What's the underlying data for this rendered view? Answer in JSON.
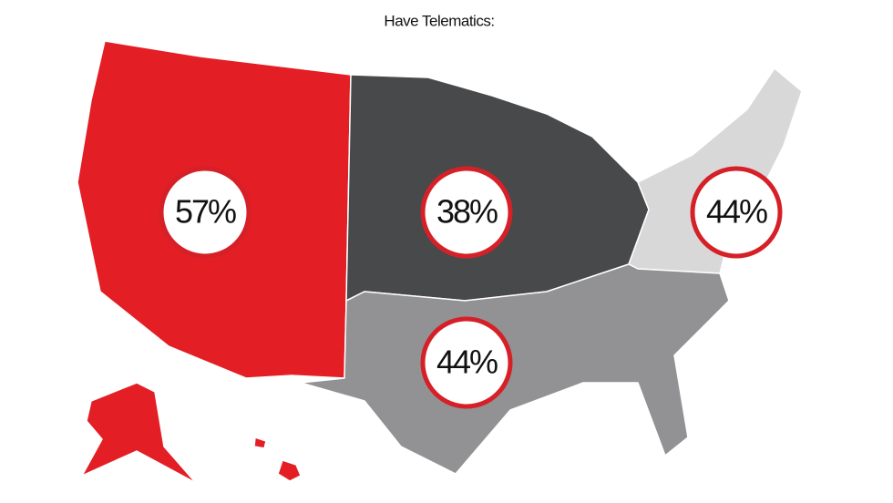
{
  "title": "Have Telematics:",
  "regions": [
    {
      "label": "57%",
      "color": "#e31e24"
    },
    {
      "label": "38%",
      "color": "#48494b"
    },
    {
      "label": "44%",
      "color": "#d8d8d8"
    },
    {
      "label": "44%",
      "color": "#929294"
    }
  ]
}
